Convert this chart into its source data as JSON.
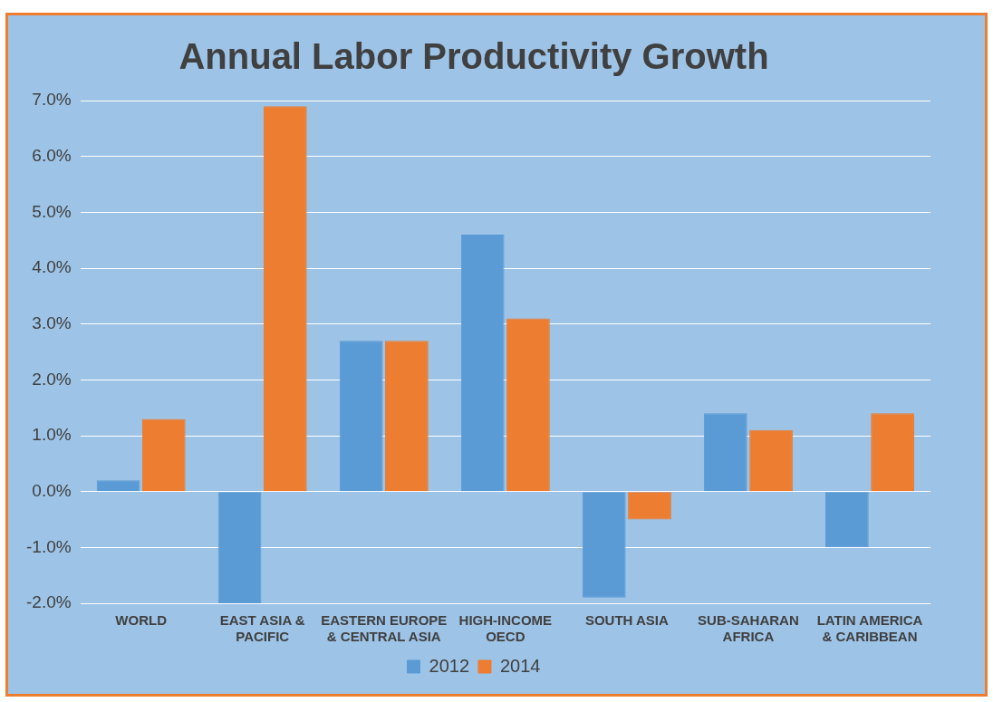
{
  "chart_data": {
    "type": "bar",
    "title": "Annual Labor Productivity Growth",
    "categories": [
      "WORLD",
      "EAST ASIA & PACIFIC",
      "EASTERN EUROPE & CENTRAL ASIA",
      "HIGH-INCOME OECD",
      "SOUTH ASIA",
      "SUB-SAHARAN AFRICA",
      "LATIN AMERICA & CARIBBEAN"
    ],
    "series": [
      {
        "name": "2012",
        "color": "#5b9bd5",
        "values": [
          0.2,
          -2.0,
          2.7,
          4.6,
          -1.9,
          1.4,
          -1.0
        ]
      },
      {
        "name": "2014",
        "color": "#ed7d31",
        "values": [
          1.3,
          6.9,
          2.7,
          3.1,
          -0.5,
          1.1,
          1.4
        ]
      }
    ],
    "ylim": [
      -2,
      7
    ],
    "yticks": [
      {
        "value": -2,
        "label": "-2.0%"
      },
      {
        "value": -1,
        "label": "-1.0%"
      },
      {
        "value": 0,
        "label": "0.0%"
      },
      {
        "value": 1,
        "label": "1.0%"
      },
      {
        "value": 2,
        "label": "2.0%"
      },
      {
        "value": 3,
        "label": "3.0%"
      },
      {
        "value": 4,
        "label": "4.0%"
      },
      {
        "value": 5,
        "label": "5.0%"
      },
      {
        "value": 6,
        "label": "6.0%"
      },
      {
        "value": 7,
        "label": "7.0%"
      }
    ],
    "grid": "y",
    "legend": "bottom"
  }
}
